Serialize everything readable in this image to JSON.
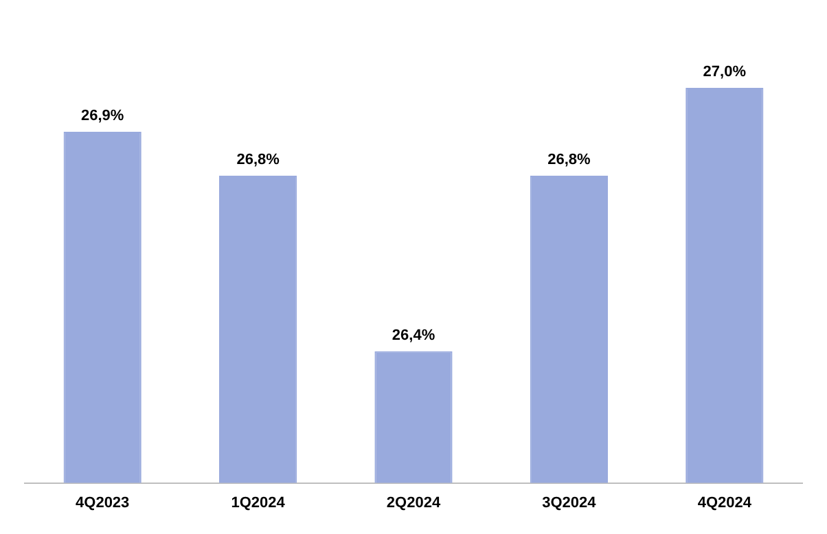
{
  "chart_data": {
    "type": "bar",
    "categories": [
      "4Q2023",
      "1Q2024",
      "2Q2024",
      "3Q2024",
      "4Q2024"
    ],
    "values": [
      26.9,
      26.8,
      26.4,
      26.8,
      27.0
    ],
    "value_labels": [
      "26,9%",
      "26,8%",
      "26,4%",
      "26,8%",
      "27,0%"
    ],
    "color": "#99aadd",
    "tick_labels": "x",
    "grid": false,
    "legend": false
  }
}
